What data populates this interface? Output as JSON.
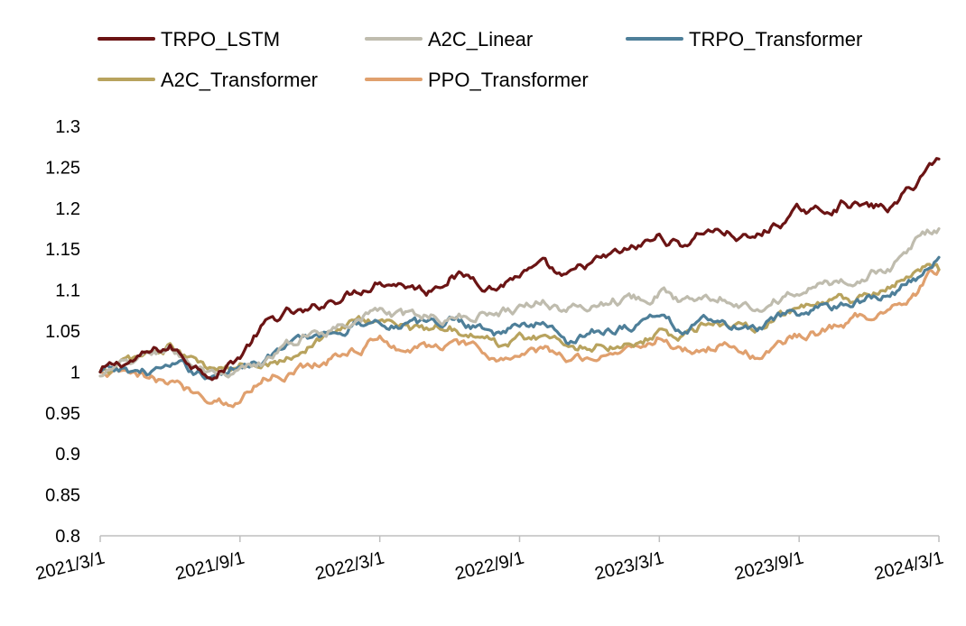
{
  "chart_data": {
    "type": "line",
    "title": "",
    "xlabel": "",
    "ylabel": "",
    "ylim": [
      0.8,
      1.3
    ],
    "yticks": [
      0.8,
      0.85,
      0.9,
      0.95,
      1,
      1.05,
      1.1,
      1.15,
      1.2,
      1.25,
      1.3
    ],
    "ytick_labels": [
      "0.8",
      "0.85",
      "0.9",
      "0.95",
      "1",
      "1.05",
      "1.1",
      "1.15",
      "1.2",
      "1.25",
      "1.3"
    ],
    "x_range": [
      "2021/3/1",
      "2024/3/1"
    ],
    "xtick_labels": [
      "2021/3/1",
      "2021/9/1",
      "2022/3/1",
      "2022/9/1",
      "2023/3/1",
      "2023/9/1",
      "2024/3/1"
    ],
    "xtick_months": [
      0,
      6,
      12,
      18,
      24,
      30,
      36
    ],
    "grid": false,
    "legend_position": "top",
    "x_months": [
      0,
      1,
      2,
      3,
      4,
      5,
      5.5,
      6,
      7,
      8,
      9,
      10,
      11,
      12,
      13,
      14,
      15,
      16,
      17,
      18,
      19,
      20,
      21,
      22,
      23,
      24,
      25,
      26,
      27,
      28,
      29,
      30,
      31,
      32,
      33,
      34,
      35,
      35.5,
      36
    ],
    "series": [
      {
        "name": "TRPO_LSTM",
        "color": "#6b1414",
        "values": [
          1.0,
          1.01,
          1.02,
          1.03,
          1.01,
          1.0,
          1.01,
          1.02,
          1.055,
          1.07,
          1.07,
          1.09,
          1.1,
          1.115,
          1.11,
          1.1,
          1.12,
          1.115,
          1.105,
          1.12,
          1.125,
          1.11,
          1.13,
          1.14,
          1.15,
          1.165,
          1.155,
          1.175,
          1.17,
          1.16,
          1.18,
          1.195,
          1.195,
          1.21,
          1.2,
          1.2,
          1.23,
          1.25,
          1.26
        ]
      },
      {
        "name": "A2C_Linear",
        "color": "#bfbcae",
        "values": [
          0.995,
          1.005,
          1.02,
          1.03,
          1.01,
          0.99,
          0.985,
          0.995,
          1.01,
          1.03,
          1.045,
          1.055,
          1.07,
          1.075,
          1.065,
          1.07,
          1.065,
          1.07,
          1.075,
          1.08,
          1.09,
          1.075,
          1.08,
          1.09,
          1.09,
          1.1,
          1.085,
          1.1,
          1.095,
          1.08,
          1.09,
          1.1,
          1.105,
          1.11,
          1.12,
          1.13,
          1.16,
          1.17,
          1.175
        ]
      },
      {
        "name": "TRPO_Transformer",
        "color": "#4e7f99",
        "values": [
          1.0,
          1.0,
          1.0,
          1.005,
          1.0,
          0.995,
          1.0,
          1.01,
          1.02,
          1.03,
          1.04,
          1.05,
          1.06,
          1.065,
          1.06,
          1.055,
          1.065,
          1.06,
          1.05,
          1.055,
          1.06,
          1.04,
          1.05,
          1.055,
          1.06,
          1.07,
          1.05,
          1.06,
          1.055,
          1.05,
          1.06,
          1.07,
          1.075,
          1.085,
          1.09,
          1.1,
          1.11,
          1.13,
          1.14
        ]
      },
      {
        "name": "A2C_Transformer",
        "color": "#b8a35e",
        "values": [
          1.0,
          1.01,
          1.02,
          1.03,
          1.01,
          1.0,
          1.0,
          1.005,
          1.015,
          1.02,
          1.035,
          1.05,
          1.06,
          1.065,
          1.055,
          1.05,
          1.06,
          1.045,
          1.035,
          1.04,
          1.045,
          1.03,
          1.035,
          1.035,
          1.04,
          1.05,
          1.04,
          1.06,
          1.06,
          1.05,
          1.065,
          1.075,
          1.08,
          1.085,
          1.09,
          1.1,
          1.12,
          1.135,
          1.125
        ]
      },
      {
        "name": "PPO_Transformer",
        "color": "#e0a06e",
        "values": [
          1.0,
          0.995,
          0.99,
          0.985,
          0.975,
          0.97,
          0.965,
          0.965,
          0.995,
          1.0,
          1.01,
          1.02,
          1.03,
          1.04,
          1.03,
          1.03,
          1.035,
          1.025,
          1.015,
          1.02,
          1.025,
          1.015,
          1.02,
          1.025,
          1.03,
          1.045,
          1.025,
          1.03,
          1.035,
          1.02,
          1.03,
          1.045,
          1.05,
          1.06,
          1.07,
          1.08,
          1.1,
          1.12,
          1.125
        ]
      }
    ]
  }
}
